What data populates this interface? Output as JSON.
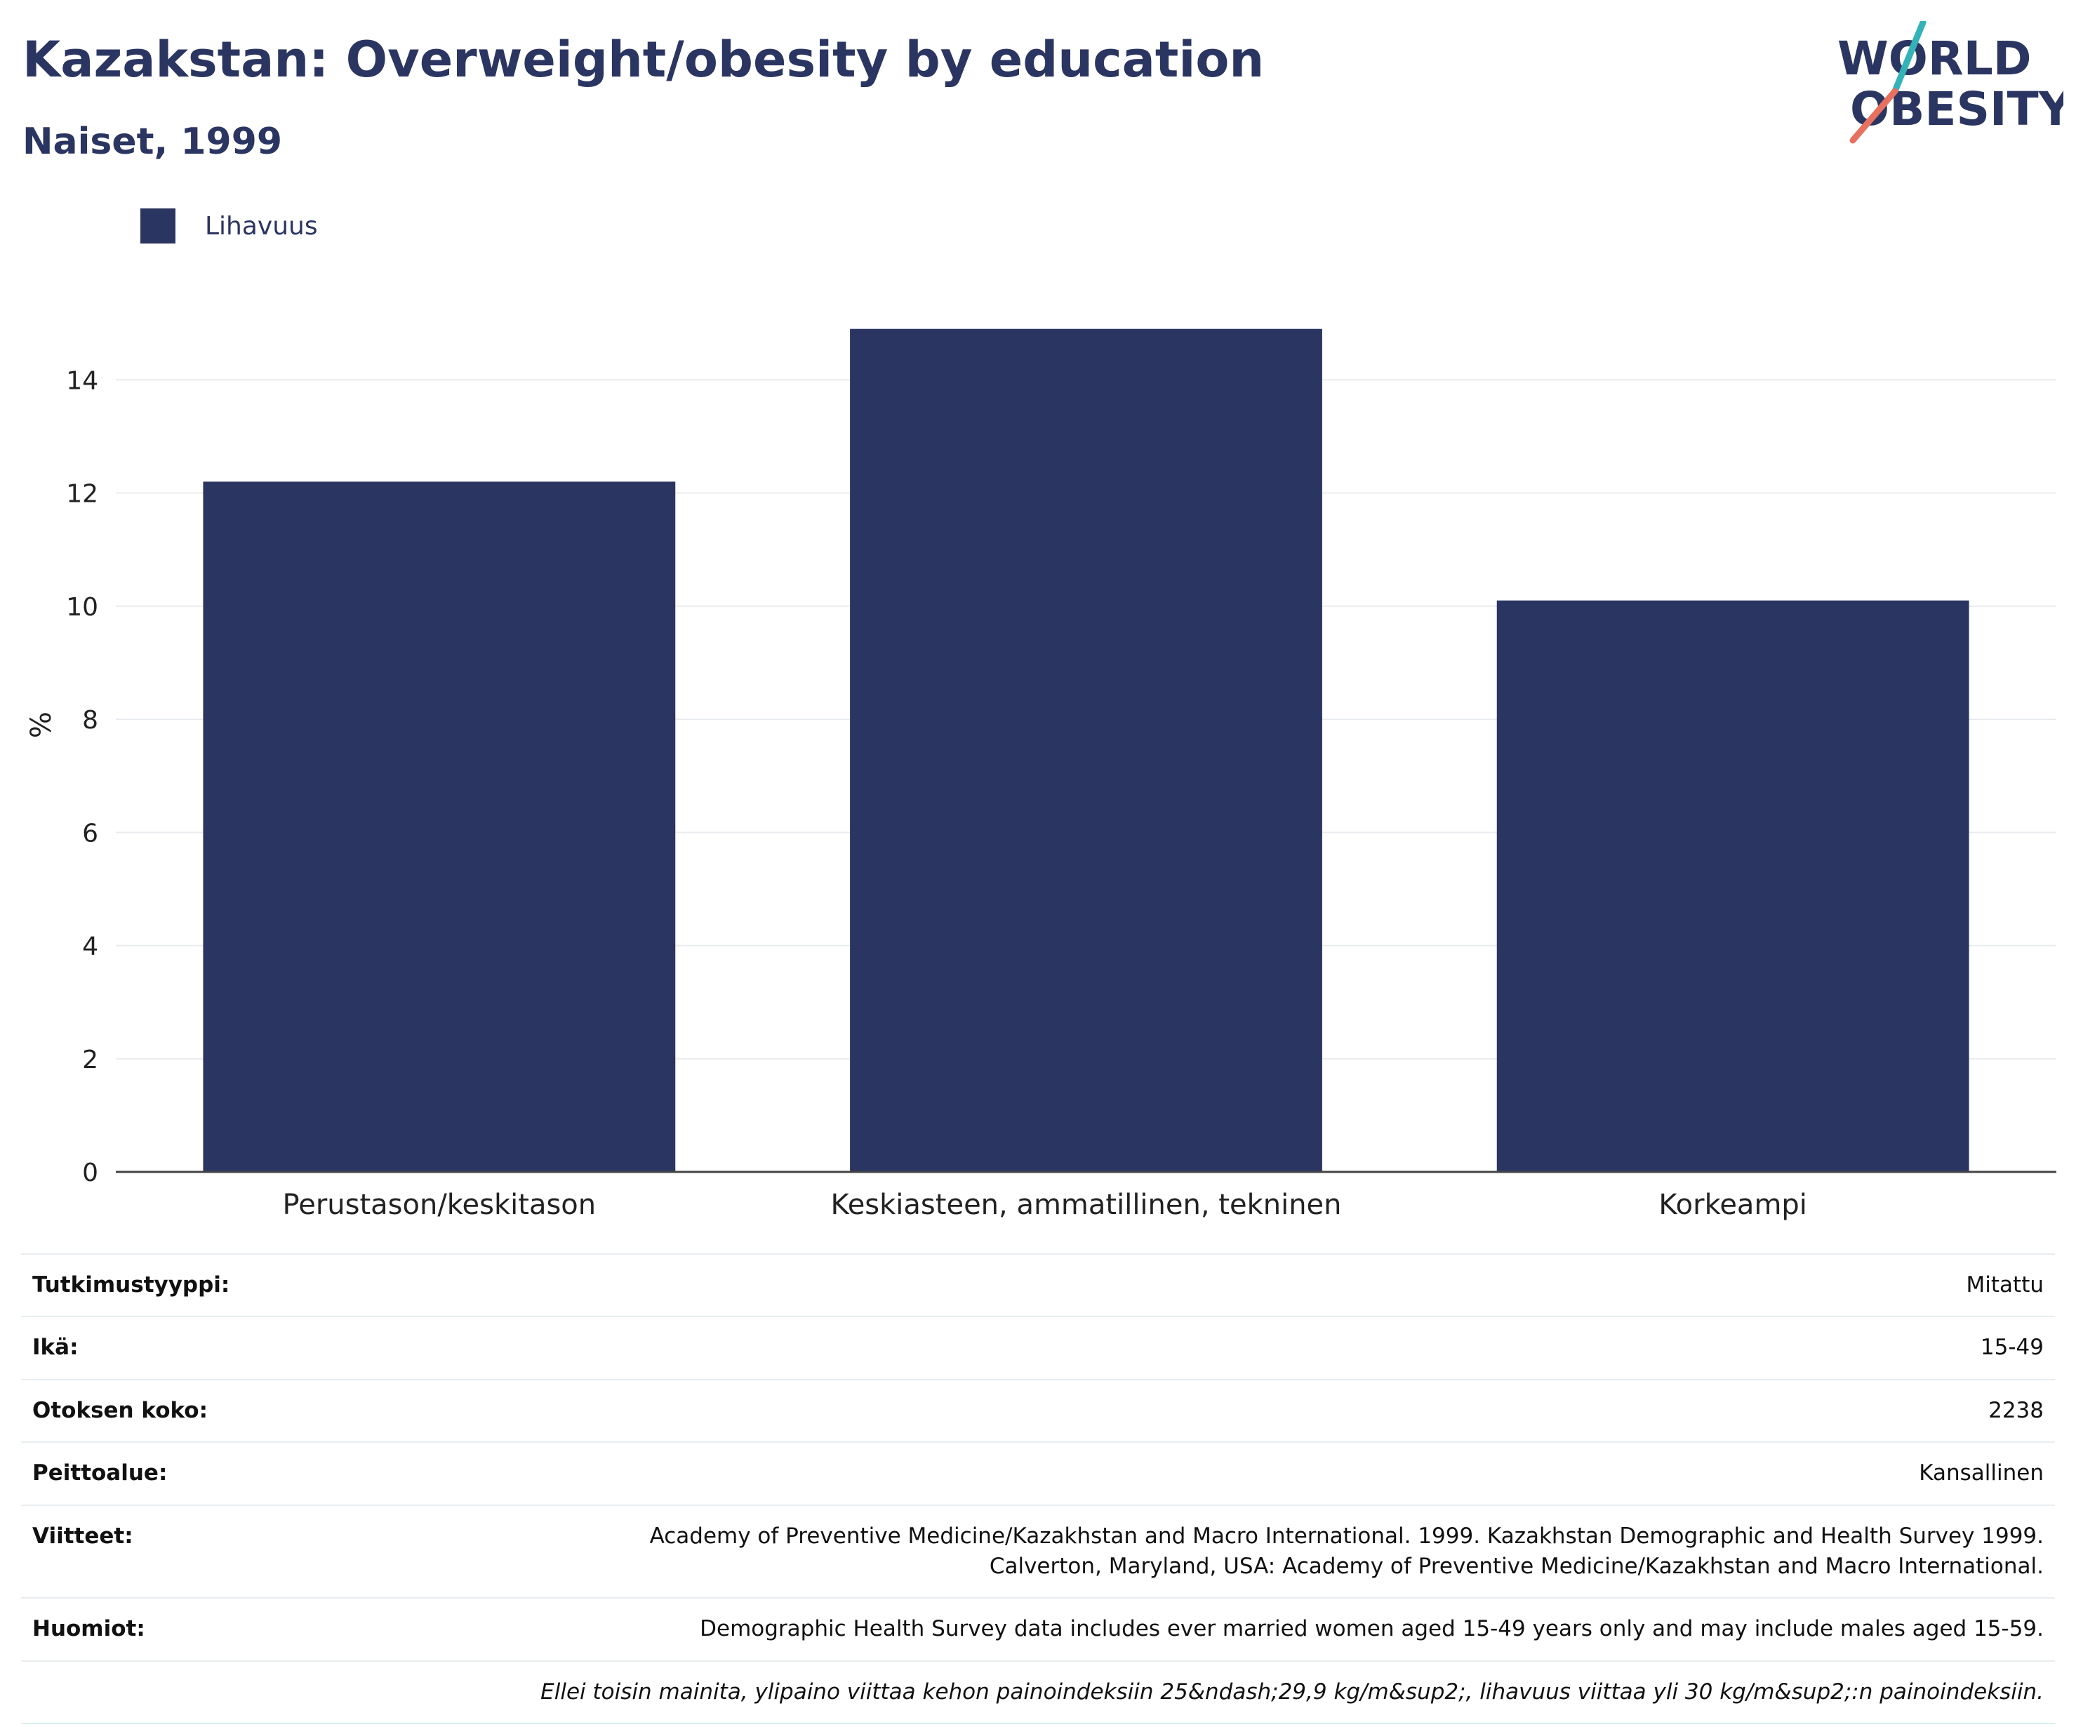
{
  "header": {
    "title": "Kazakstan: Overweight/obesity by education",
    "subtitle": "Naiset, 1999"
  },
  "logo": {
    "line1": "WORLD",
    "line2": "OBESITY"
  },
  "colors": {
    "bar": "#2b3561",
    "title": "#2b3561",
    "logo_teal": "#33b3b8",
    "logo_coral": "#e8705f"
  },
  "legend": {
    "items": [
      {
        "label": "Lihavuus"
      }
    ]
  },
  "chart_data": {
    "type": "bar",
    "categories": [
      "Perustason/keskitason",
      "Keskiasteen, ammatillinen, tekninen",
      "Korkeampi"
    ],
    "series": [
      {
        "name": "Lihavuus",
        "values": [
          12.2,
          14.9,
          10.1
        ]
      }
    ],
    "ylabel": "%",
    "ylim": [
      0,
      16
    ],
    "yticks": [
      0,
      2,
      4,
      6,
      8,
      10,
      12,
      14
    ],
    "grid": true,
    "legend_position": "top-left"
  },
  "meta": {
    "rows": [
      {
        "label": "Tutkimustyyppi:",
        "value": "Mitattu"
      },
      {
        "label": "Ikä:",
        "value": "15-49"
      },
      {
        "label": "Otoksen koko:",
        "value": "2238"
      },
      {
        "label": "Peittoalue:",
        "value": "Kansallinen"
      },
      {
        "label": "Viitteet:",
        "value": "Academy of Preventive Medicine/Kazakhstan and Macro International. 1999. Kazakhstan Demographic and Health Survey 1999.",
        "value2": "Calverton, Maryland, USA: Academy of Preventive Medicine/Kazakhstan and Macro International."
      },
      {
        "label": "Huomiot:",
        "value": "Demographic Health Survey data includes ever married women aged 15-49 years only and may include males aged 15-59."
      }
    ],
    "footnote": "Ellei toisin mainita, ylipaino viittaa kehon painoindeksiin 25&ndash;29,9 kg/m&sup2;, lihavuus viittaa yli 30 kg/m&sup2;:n painoindeksiin."
  }
}
